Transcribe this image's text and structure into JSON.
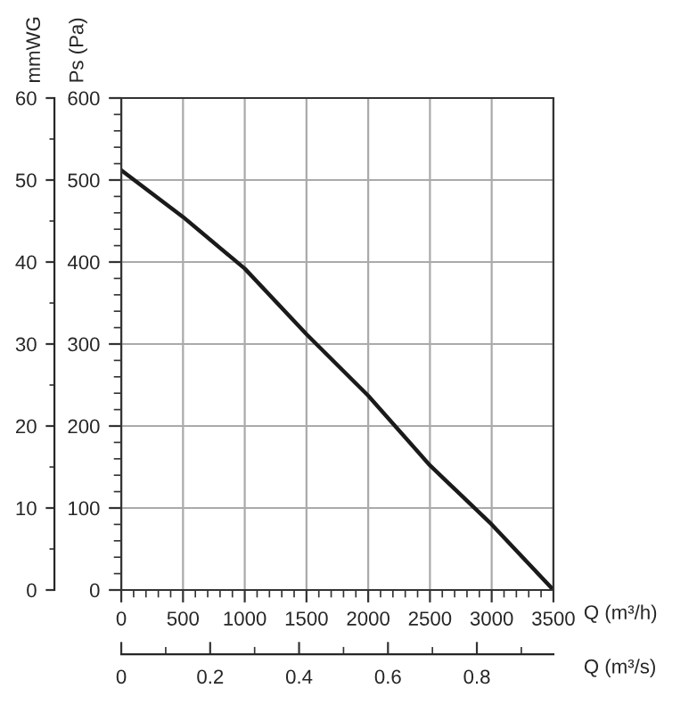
{
  "chart_data": {
    "type": "line",
    "x": [
      0,
      500,
      1000,
      1500,
      2000,
      2500,
      3000,
      3500
    ],
    "series": [
      {
        "color": "#1a1a1a",
        "values": [
          512,
          455,
          392,
          312,
          237,
          152,
          80,
          0
        ]
      }
    ],
    "xlabel": "Q (m³/h)",
    "ylabel": "Ps (Pa)",
    "y2label": "mmWG",
    "x2label": "Q (m³/s)",
    "xlim": [
      0,
      3500
    ],
    "xticks": [
      0,
      500,
      1000,
      1500,
      2000,
      2500,
      3000,
      3500
    ],
    "ylim": [
      0,
      600
    ],
    "yticks": [
      0,
      100,
      200,
      300,
      400,
      500,
      600
    ],
    "y2lim": [
      0,
      60
    ],
    "y2ticks": [
      0,
      10,
      20,
      30,
      40,
      50,
      60
    ],
    "x2lim": [
      0,
      0.9722
    ],
    "x2ticks": [
      0,
      0.2,
      0.4,
      0.6,
      0.8
    ],
    "grid": true,
    "legend": false,
    "marker": "none",
    "line_style": "solid"
  }
}
